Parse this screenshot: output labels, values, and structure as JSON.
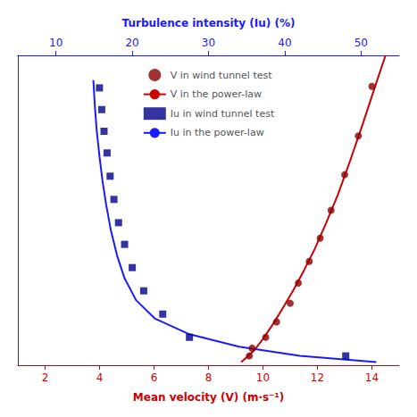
{
  "chart_data": {
    "type": "line",
    "xlabel": "Mean velocity (V) (m·s⁻¹)",
    "x2label": "Turbulence intensity (Iu) (%)",
    "xlim": [
      1,
      15
    ],
    "xticks": [
      2,
      4,
      6,
      8,
      10,
      12,
      14
    ],
    "x2lim": [
      5,
      55
    ],
    "x2ticks": [
      10,
      20,
      30,
      40,
      50
    ],
    "ylim": [
      0.0,
      1.0
    ],
    "yticks": [],
    "tick_labels": "x",
    "grid": false,
    "legend": "upper center",
    "series": [
      {
        "name": "V in wind tunnel test",
        "type": "scatter",
        "marker": "circle",
        "color": "#8b0000",
        "x": [
          9.5,
          9.6,
          10.1,
          10.5,
          11.0,
          11.3,
          11.7,
          12.1,
          12.5,
          13.0,
          13.5,
          14.0
        ],
        "values": [
          0.03,
          0.055,
          0.09,
          0.14,
          0.2,
          0.265,
          0.335,
          0.41,
          0.5,
          0.615,
          0.74,
          0.9
        ]
      },
      {
        "name": "V in the power-law",
        "type": "line",
        "color": "#cc0000",
        "x": [
          9.2,
          9.4,
          9.7,
          10.0,
          10.35,
          10.7,
          11.1,
          11.5,
          11.9,
          12.3,
          12.75,
          13.2,
          13.65,
          14.1,
          14.5
        ],
        "values": [
          0.01,
          0.025,
          0.05,
          0.085,
          0.13,
          0.18,
          0.24,
          0.305,
          0.375,
          0.455,
          0.55,
          0.66,
          0.775,
          0.895,
          1.0
        ]
      },
      {
        "name": "Iu in wind tunnel test",
        "type": "scatter",
        "marker": "square",
        "color": "#00008b",
        "axis": "x2",
        "x": [
          48.0,
          27.5,
          24.0,
          21.5,
          20.0,
          19.0,
          18.2,
          17.6,
          17.1,
          16.7,
          16.3,
          16.0,
          15.7
        ],
        "values": [
          0.03,
          0.09,
          0.165,
          0.24,
          0.315,
          0.39,
          0.46,
          0.535,
          0.61,
          0.685,
          0.755,
          0.825,
          0.895
        ]
      },
      {
        "name": "Iu in the power-law",
        "type": "line",
        "color": "#1a1aff",
        "axis": "x2",
        "x": [
          52.0,
          42.0,
          34.0,
          27.5,
          23.0,
          20.5,
          19.0,
          18.0,
          17.2,
          16.6,
          16.1,
          15.7,
          15.35,
          15.1,
          14.9
        ],
        "values": [
          0.01,
          0.03,
          0.06,
          0.1,
          0.15,
          0.21,
          0.28,
          0.355,
          0.435,
          0.515,
          0.595,
          0.675,
          0.755,
          0.835,
          0.92
        ]
      }
    ]
  }
}
